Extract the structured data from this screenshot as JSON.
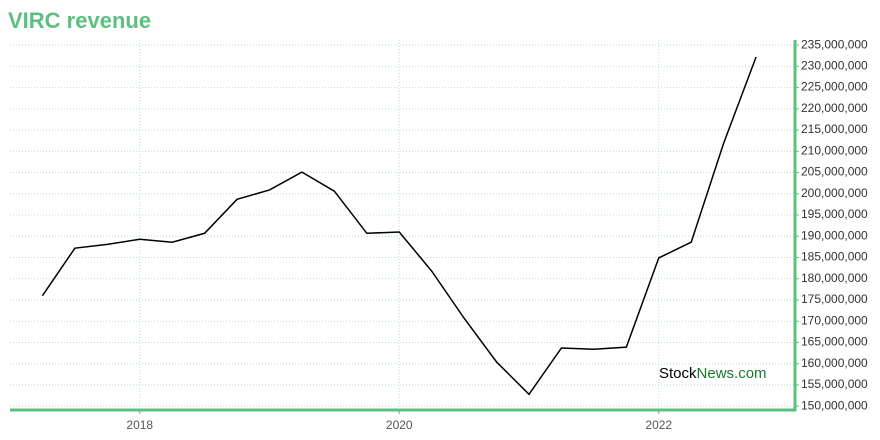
{
  "chart_data": {
    "type": "line",
    "title": "VIRC revenue",
    "x": [
      2017.25,
      2017.5,
      2017.75,
      2018,
      2018.25,
      2018.5,
      2018.75,
      2019,
      2019.25,
      2019.5,
      2019.75,
      2020,
      2020.25,
      2020.5,
      2020.75,
      2021,
      2021.25,
      2021.5,
      2021.75,
      2022,
      2022.25,
      2022.5,
      2022.75
    ],
    "series": [
      {
        "name": "VIRC revenue",
        "color": "#000000",
        "values": [
          176000000,
          187200000,
          188100000,
          189300000,
          188600000,
          190700000,
          198700000,
          200900000,
          205100000,
          200600000,
          190700000,
          191000000,
          181800000,
          170700000,
          160400000,
          152800000,
          163700000,
          163400000,
          163900000,
          184900000,
          188600000,
          211900000,
          232200000
        ]
      }
    ],
    "xlim": [
      2017,
      2023.05
    ],
    "xticks": [
      2018,
      2020,
      2022
    ],
    "ylim": [
      149100000,
      236200000
    ],
    "yticks": [
      {
        "value": 150000000,
        "label": "150,000,000"
      },
      {
        "value": 155000000,
        "label": "155,000,000"
      },
      {
        "value": 160000000,
        "label": "160,000,000"
      },
      {
        "value": 165000000,
        "label": "165,000,000"
      },
      {
        "value": 170000000,
        "label": "170,000,000"
      },
      {
        "value": 175000000,
        "label": "175,000,000"
      },
      {
        "value": 180000000,
        "label": "180,000,000"
      },
      {
        "value": 185000000,
        "label": "185,000,000"
      },
      {
        "value": 190000000,
        "label": "190,000,000"
      },
      {
        "value": 195000000,
        "label": "195,000,000"
      },
      {
        "value": 200000000,
        "label": "200,000,000"
      },
      {
        "value": 205000000,
        "label": "205,000,000"
      },
      {
        "value": 210000000,
        "label": "210,000,000"
      },
      {
        "value": 215000000,
        "label": "215,000,000"
      },
      {
        "value": 220000000,
        "label": "220,000,000"
      },
      {
        "value": 225000000,
        "label": "225,000,000"
      },
      {
        "value": 230000000,
        "label": "230,000,000"
      },
      {
        "value": 235000000,
        "label": "235,000,000"
      }
    ],
    "grid": true,
    "axis_color": "#5cbf7f",
    "watermark": [
      "Stock",
      "News.com"
    ]
  }
}
